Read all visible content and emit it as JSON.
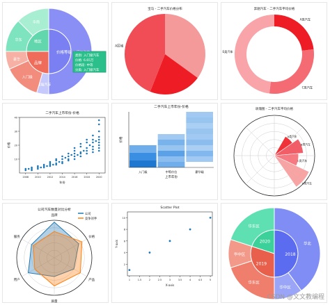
{
  "watermark": "CSDN @文文教编程",
  "chart_data": [
    {
      "type": "sunburst",
      "title": "",
      "inner": [
        {
          "label": "价格等级",
          "value": 2,
          "color": "#7a80f2"
        },
        {
          "label": "品牌",
          "value": 1,
          "color": "#ef6b5a"
        },
        {
          "label": "地区",
          "value": 1,
          "color": "#62d6ad"
        }
      ],
      "outer": [
        {
          "label": "入门级汽车",
          "value": 2,
          "color": "#8a8ff6"
        },
        {
          "label": "高端汽车",
          "value": 0.18,
          "color": "#c6c9fb"
        },
        {
          "label": "入门级",
          "value": 0.55,
          "color": "#f28d7d"
        },
        {
          "label": "豪华",
          "value": 0.27,
          "color": "#f6b0a4"
        },
        {
          "label": "华东",
          "value": 0.5,
          "color": "#7ee4bf"
        },
        {
          "label": "华南",
          "value": 0.5,
          "color": "#a7eed3"
        }
      ],
      "tooltip": [
        "类别: 入门级汽车",
        "价格: 6.65万",
        "价格段: 中等",
        "分类: 入门级汽车"
      ]
    },
    {
      "type": "pie",
      "title": "宝马 - 二手汽车价格分布",
      "slices": [
        {
          "label": "",
          "value": 35,
          "color": "#f59a9a"
        },
        {
          "label": "",
          "value": 21,
          "color": "#ee1c24"
        },
        {
          "label": "A区域",
          "value": 44,
          "color": "#f04d56"
        }
      ]
    },
    {
      "type": "donut",
      "title": "奔驰汽车 - 二手汽车平均价格",
      "slices": [
        {
          "label": "A类汽车",
          "value": 23,
          "color": "#ee1c24"
        },
        {
          "label": "C类汽车",
          "value": 29,
          "color": "#f46b73"
        },
        {
          "label": "E类汽车",
          "value": 48,
          "color": "#f9a4a8"
        }
      ]
    },
    {
      "type": "scatter",
      "title": "二手汽车上市年份-价格",
      "xlabel": "年份",
      "ylabel": "价格",
      "xlim": [
        2007,
        2021
      ],
      "ylim": [
        0,
        40
      ],
      "x_ticks": [
        2008,
        2010,
        2012,
        2014,
        2016,
        2018,
        2020
      ],
      "color": "#1f77b4",
      "points": [
        [
          2008,
          2
        ],
        [
          2008,
          3
        ],
        [
          2008.5,
          3
        ],
        [
          2009,
          2
        ],
        [
          2009,
          4
        ],
        [
          2009,
          3
        ],
        [
          2010,
          3
        ],
        [
          2010,
          5
        ],
        [
          2010,
          4
        ],
        [
          2010.5,
          4
        ],
        [
          2011,
          4
        ],
        [
          2011,
          6
        ],
        [
          2011,
          5
        ],
        [
          2011.5,
          5
        ],
        [
          2012,
          5
        ],
        [
          2012,
          7
        ],
        [
          2012,
          8
        ],
        [
          2012,
          6
        ],
        [
          2012.5,
          6
        ],
        [
          2013,
          6
        ],
        [
          2013,
          9
        ],
        [
          2013,
          7
        ],
        [
          2013,
          10
        ],
        [
          2013.5,
          8
        ],
        [
          2014,
          7
        ],
        [
          2014,
          10
        ],
        [
          2014,
          12
        ],
        [
          2014,
          8
        ],
        [
          2014.5,
          11
        ],
        [
          2015,
          9
        ],
        [
          2015,
          12
        ],
        [
          2015,
          14
        ],
        [
          2015,
          10
        ],
        [
          2015.5,
          13
        ],
        [
          2016,
          10
        ],
        [
          2016,
          14
        ],
        [
          2016,
          16
        ],
        [
          2016,
          12
        ],
        [
          2016,
          18
        ],
        [
          2016.5,
          13
        ],
        [
          2017,
          12
        ],
        [
          2017,
          15
        ],
        [
          2017,
          19
        ],
        [
          2017,
          14
        ],
        [
          2017,
          21
        ],
        [
          2017.5,
          16
        ],
        [
          2018,
          14
        ],
        [
          2018,
          18
        ],
        [
          2018,
          22
        ],
        [
          2018,
          16
        ],
        [
          2018,
          24
        ],
        [
          2018.5,
          20
        ],
        [
          2019,
          15
        ],
        [
          2019,
          19
        ],
        [
          2019,
          24
        ],
        [
          2019,
          17
        ],
        [
          2019,
          27
        ],
        [
          2019,
          22
        ],
        [
          2019.5,
          23
        ],
        [
          2020,
          16
        ],
        [
          2020,
          20
        ],
        [
          2020,
          26
        ],
        [
          2020,
          30
        ],
        [
          2020,
          35
        ],
        [
          2020,
          38
        ],
        [
          2020,
          22
        ],
        [
          2020,
          18
        ],
        [
          2020,
          24
        ]
      ]
    },
    {
      "type": "heatmap",
      "title": "二手汽车上市年份-价格",
      "xlabel": "上市年份",
      "ylabel": "价格",
      "categories": [
        "入门级",
        "中等价位",
        "豪华级"
      ],
      "columns": [
        {
          "y0": 0,
          "y1": 4,
          "cells": [
            0.95,
            0.75,
            0.5
          ]
        },
        {
          "y0": 0,
          "y1": 6,
          "cells": [
            0.5,
            0.35,
            0.6,
            0.3,
            0.45,
            0.25
          ]
        },
        {
          "y0": 1,
          "y1": 10,
          "cells": [
            0.25,
            0.4,
            0.2,
            0.35,
            0.25,
            0.3,
            0.2,
            0.3,
            0.25
          ]
        }
      ],
      "ylim": [
        0,
        10
      ]
    },
    {
      "type": "polar_bar",
      "title": "玫瑰图 - 二手汽车平均价格",
      "bars": [
        {
          "label": "A类汽车",
          "start": 35,
          "width": 25,
          "radius": 0.55,
          "color": "#ee1c24"
        },
        {
          "label": "B类汽车",
          "start": 5,
          "width": 30,
          "radius": 0.72,
          "color": "#f04d56"
        },
        {
          "label": "C类汽车",
          "start": -25,
          "width": 30,
          "radius": 0.6,
          "color": "#f46b73"
        },
        {
          "label": "D类汽车",
          "start": -55,
          "width": 30,
          "radius": 0.95,
          "color": "#f59a9a"
        }
      ],
      "rings": 5
    },
    {
      "type": "radar",
      "title": "公司汽车数量对比分析",
      "axes": [
        "品牌",
        "价格",
        "产品",
        "质量",
        "用户",
        "服务"
      ],
      "ylim": [
        0,
        100
      ],
      "series": [
        {
          "name": "公司",
          "values": [
            95,
            75,
            60,
            50,
            80,
            70
          ],
          "color": "#1f77b4"
        },
        {
          "name": "竞争对手",
          "values": [
            70,
            85,
            80,
            75,
            60,
            65
          ],
          "color": "#ff7f0e"
        }
      ]
    },
    {
      "type": "scatter",
      "title": "Scatter Plot",
      "xlabel": "X-axis",
      "ylabel": "Y-axis",
      "xlim": [
        0.9,
        5.1
      ],
      "ylim": [
        0,
        11
      ],
      "x_ticks": [
        1.0,
        1.5,
        2.0,
        2.5,
        3.0,
        3.5,
        4.0,
        4.5,
        5.0
      ],
      "y_ticks": [
        2,
        4,
        6,
        8,
        10
      ],
      "color": "#1f77b4",
      "points": [
        [
          1,
          1
        ],
        [
          2,
          4
        ],
        [
          3,
          6
        ],
        [
          4,
          8
        ],
        [
          5,
          10
        ]
      ]
    },
    {
      "type": "sunburst",
      "title": "",
      "inner": [
        {
          "label": "2018",
          "value": 0.5,
          "color": "#5b6cf0"
        },
        {
          "label": "2019",
          "value": 0.3,
          "color": "#e8604c"
        },
        {
          "label": "2020",
          "value": 0.2,
          "color": "#3cd19b"
        }
      ],
      "outer": [
        {
          "label": "华北",
          "value": 0.4,
          "color": "#7f8df5"
        },
        {
          "label": "华中区",
          "value": 0.1,
          "color": "#9aa5f7"
        },
        {
          "label": "华东区",
          "value": 0.2,
          "color": "#ef7e6c"
        },
        {
          "label": "华中区",
          "value": 0.1,
          "color": "#f39989"
        },
        {
          "label": "华东区",
          "value": 0.2,
          "color": "#5fe0b3"
        }
      ]
    }
  ]
}
